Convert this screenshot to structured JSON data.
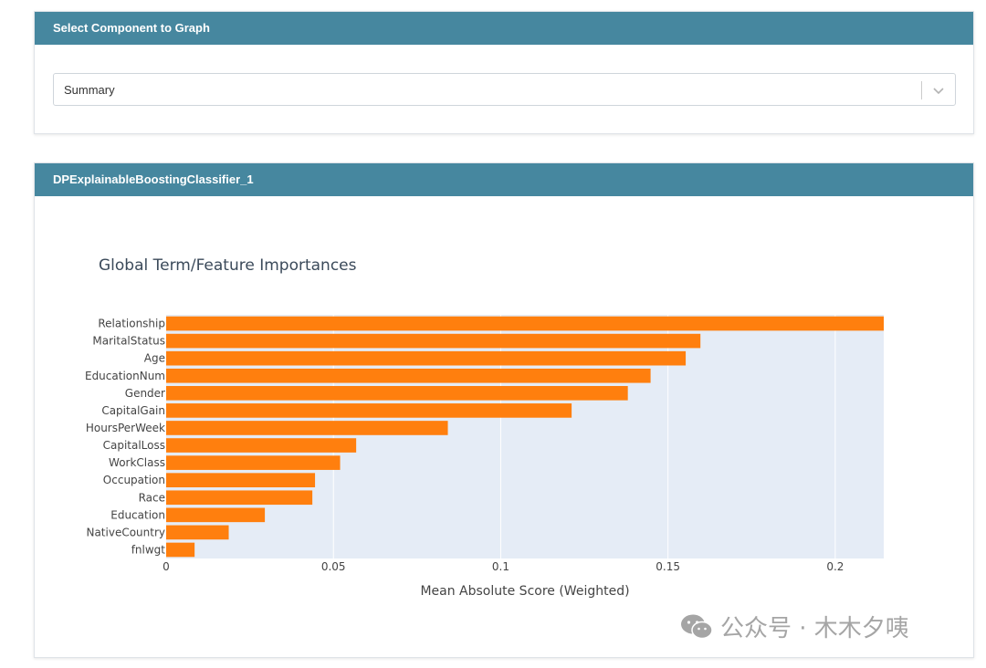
{
  "select_card": {
    "header": "Select Component to Graph",
    "dropdown": {
      "value": "Summary"
    }
  },
  "graph_card": {
    "header": "DPExplainableBoostingClassifier_1"
  },
  "chart_data": {
    "type": "bar",
    "orientation": "horizontal",
    "title": "Global Term/Feature Importances",
    "xlabel": "Mean Absolute Score (Weighted)",
    "ylabel": "",
    "xlim": [
      0,
      0.2145
    ],
    "x_ticks": [
      0,
      0.05,
      0.1,
      0.15,
      0.2
    ],
    "x_tick_labels": [
      "0",
      "0.05",
      "0.1",
      "0.15",
      "0.2"
    ],
    "grid": true,
    "bar_color": "#ff7f0e",
    "plot_bg": "#e5ecf6",
    "categories": [
      "Relationship",
      "MaritalStatus",
      "Age",
      "EducationNum",
      "Gender",
      "CapitalGain",
      "HoursPerWeek",
      "CapitalLoss",
      "WorkClass",
      "Occupation",
      "Race",
      "Education",
      "NativeCountry",
      "fnlwgt"
    ],
    "values": [
      0.2145,
      0.1597,
      0.1553,
      0.1448,
      0.138,
      0.1212,
      0.0842,
      0.0568,
      0.052,
      0.0445,
      0.0437,
      0.0295,
      0.0187,
      0.0085
    ]
  },
  "watermark": {
    "text": "公众号 · 木木夕咦",
    "icon": "wechat-icon"
  },
  "colors": {
    "header_bg": "#46879f",
    "bar": "#ff7f0e",
    "plot_bg": "#e5ecf6"
  }
}
